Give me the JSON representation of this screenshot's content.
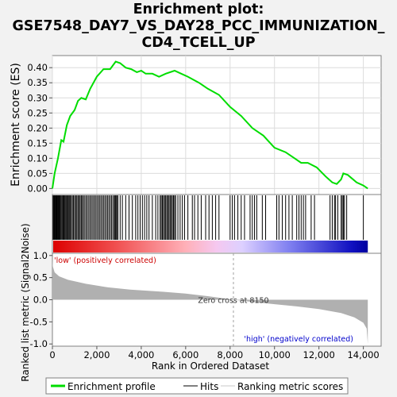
{
  "title_lines": [
    "Enrichment plot:",
    "GSE7548_DAY7_VS_DAY28_PCC_IMMUNIZATION_",
    "CD4_TCELL_UP"
  ],
  "colors": {
    "es_line": "#00dd00",
    "hits": "#000000",
    "metric_fill": "#b0b0b0",
    "text_low": "#cc0000",
    "text_high": "#0000cc",
    "zero_line": "#a0a0a0"
  },
  "chart_data": {
    "type": "line",
    "x_axis": {
      "label": "Rank in Ordered Dataset",
      "range": [
        0,
        14800
      ],
      "ticks": [
        0,
        2000,
        4000,
        6000,
        8000,
        10000,
        12000,
        14000
      ],
      "tick_labels": [
        "0",
        "2,000",
        "4,000",
        "6,000",
        "8,000",
        "10,000",
        "12,000",
        "14,000"
      ]
    },
    "es_panel": {
      "ylabel": "Enrichment score (ES)",
      "ylim": [
        -0.02,
        0.44
      ],
      "yticks": [
        0.0,
        0.05,
        0.1,
        0.15,
        0.2,
        0.25,
        0.3,
        0.35,
        0.4
      ],
      "ytick_labels": [
        "0.00",
        "0.05",
        "0.10",
        "0.15",
        "0.20",
        "0.25",
        "0.30",
        "0.35",
        "0.40"
      ],
      "grid": true,
      "series_name": "Enrichment profile",
      "points": [
        [
          0,
          0.0
        ],
        [
          100,
          0.05
        ],
        [
          250,
          0.1
        ],
        [
          400,
          0.16
        ],
        [
          500,
          0.155
        ],
        [
          650,
          0.21
        ],
        [
          800,
          0.24
        ],
        [
          1000,
          0.26
        ],
        [
          1150,
          0.29
        ],
        [
          1300,
          0.3
        ],
        [
          1500,
          0.295
        ],
        [
          1700,
          0.33
        ],
        [
          2000,
          0.37
        ],
        [
          2300,
          0.395
        ],
        [
          2600,
          0.395
        ],
        [
          2850,
          0.42
        ],
        [
          3050,
          0.415
        ],
        [
          3300,
          0.4
        ],
        [
          3550,
          0.395
        ],
        [
          3800,
          0.385
        ],
        [
          4000,
          0.39
        ],
        [
          4200,
          0.38
        ],
        [
          4500,
          0.38
        ],
        [
          4800,
          0.37
        ],
        [
          5100,
          0.38
        ],
        [
          5500,
          0.39
        ],
        [
          5800,
          0.38
        ],
        [
          6100,
          0.37
        ],
        [
          6600,
          0.35
        ],
        [
          7000,
          0.33
        ],
        [
          7500,
          0.31
        ],
        [
          8000,
          0.27
        ],
        [
          8500,
          0.24
        ],
        [
          9000,
          0.2
        ],
        [
          9500,
          0.175
        ],
        [
          10000,
          0.135
        ],
        [
          10500,
          0.12
        ],
        [
          10900,
          0.1
        ],
        [
          11200,
          0.085
        ],
        [
          11500,
          0.085
        ],
        [
          11900,
          0.07
        ],
        [
          12300,
          0.04
        ],
        [
          12600,
          0.02
        ],
        [
          12800,
          0.015
        ],
        [
          13000,
          0.03
        ],
        [
          13100,
          0.05
        ],
        [
          13300,
          0.045
        ],
        [
          13700,
          0.02
        ],
        [
          14000,
          0.01
        ],
        [
          14200,
          0.0
        ]
      ]
    },
    "hits_panel": {
      "label": "Hits",
      "hit_ranks": [
        30,
        60,
        90,
        120,
        150,
        180,
        210,
        240,
        270,
        300,
        330,
        360,
        400,
        440,
        480,
        520,
        560,
        600,
        640,
        680,
        720,
        760,
        800,
        850,
        900,
        950,
        1000,
        1050,
        1100,
        1150,
        1200,
        1250,
        1300,
        1350,
        1400,
        1460,
        1520,
        1580,
        1640,
        1700,
        1760,
        1820,
        1880,
        1940,
        2000,
        2060,
        2120,
        2180,
        2240,
        2300,
        2360,
        2420,
        2480,
        2540,
        2600,
        2660,
        2720,
        2780,
        2820,
        2860,
        2900,
        2950,
        3050,
        3150,
        3300,
        3450,
        3600,
        3750,
        3850,
        3950,
        4050,
        4150,
        4250,
        4350,
        4500,
        4650,
        4750,
        4850,
        4900,
        4950,
        5000,
        5050,
        5100,
        5150,
        5200,
        5250,
        5300,
        5350,
        5400,
        5450,
        5500,
        5550,
        5650,
        5750,
        5850,
        5950,
        6100,
        6300,
        6400,
        6550,
        6700,
        6900,
        7050,
        7200,
        7350,
        7500,
        8000,
        8100,
        8200,
        8350,
        8500,
        8650,
        8900,
        9000,
        9100,
        9200,
        9450,
        9600,
        10100,
        10200,
        10350,
        10500,
        10650,
        10800,
        11000,
        11100,
        11200,
        11300,
        11400,
        11650,
        11800,
        12500,
        12600,
        12700,
        12750,
        12850,
        13000,
        13050,
        13100,
        13150,
        13250,
        14000
      ]
    },
    "metric_panel": {
      "ylabel": "Ranked list metric (Signal2Noise)",
      "ylim": [
        -1.05,
        1.05
      ],
      "yticks": [
        -1.0,
        -0.5,
        0.0,
        0.5,
        1.0
      ],
      "ytick_labels": [
        "-1.0",
        "-0.5",
        "0.0",
        "0.5",
        "1.0"
      ],
      "series_name": "Ranking metric scores",
      "points": [
        [
          0,
          0.95
        ],
        [
          20,
          0.75
        ],
        [
          100,
          0.62
        ],
        [
          300,
          0.53
        ],
        [
          700,
          0.45
        ],
        [
          1500,
          0.36
        ],
        [
          2500,
          0.28
        ],
        [
          3500,
          0.23
        ],
        [
          5000,
          0.18
        ],
        [
          6000,
          0.14
        ],
        [
          7000,
          0.08
        ],
        [
          8150,
          0.0
        ],
        [
          9000,
          -0.05
        ],
        [
          10000,
          -0.1
        ],
        [
          11000,
          -0.15
        ],
        [
          12000,
          -0.21
        ],
        [
          13000,
          -0.3
        ],
        [
          13600,
          -0.4
        ],
        [
          14000,
          -0.52
        ],
        [
          14150,
          -0.65
        ],
        [
          14200,
          -1.0
        ]
      ],
      "zero_cross_label": "Zero cross at 8150",
      "zero_cross_rank": 8150,
      "low_label": "'low' (positively correlated)",
      "high_label": "'high' (negatively correlated)"
    },
    "legend": {
      "placement": "bottom",
      "entries": [
        "Enrichment profile",
        "Hits",
        "Ranking metric scores"
      ]
    }
  }
}
